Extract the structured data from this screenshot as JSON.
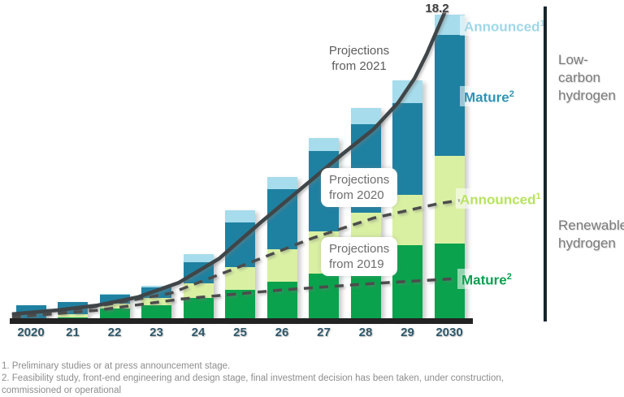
{
  "chart_data": {
    "type": "bar",
    "stacked": true,
    "grid": false,
    "ylim": [
      0,
      19
    ],
    "categories": [
      "2020",
      "21",
      "22",
      "23",
      "24",
      "25",
      "26",
      "27",
      "28",
      "29",
      "2030"
    ],
    "series": [
      {
        "key": "mature-renewable",
        "name": "Mature",
        "group": "Renewable hydrogen",
        "color": "#0aa24d",
        "values": [
          0.0,
          0.1,
          0.6,
          0.8,
          1.25,
          1.7,
          2.2,
          2.7,
          3.7,
          4.35,
          4.45
        ]
      },
      {
        "key": "announced-renewable",
        "name": "Announced",
        "group": "Renewable hydrogen",
        "color": "#d9f0a3",
        "values": [
          0.05,
          0.2,
          0.3,
          0.45,
          0.85,
          1.35,
          1.9,
          2.45,
          2.55,
          2.95,
          5.15
        ]
      },
      {
        "key": "mature-lowcarbon",
        "name": "Mature",
        "group": "Low-carbon hydrogen",
        "color": "#1f81a1",
        "values": [
          0.75,
          0.7,
          0.55,
          0.6,
          1.25,
          2.65,
          3.55,
          4.75,
          5.25,
          5.45,
          7.15
        ]
      },
      {
        "key": "announced-lowcarbon",
        "name": "Announced",
        "group": "Low-carbon hydrogen",
        "color": "#a7dcec",
        "values": [
          0.0,
          0.0,
          0.05,
          0.1,
          0.5,
          0.7,
          0.7,
          0.75,
          0.95,
          1.3,
          1.2
        ]
      }
    ],
    "lines": [
      {
        "key": "proj-2021",
        "label": "Projections from 2021",
        "style": "solid",
        "color": "#3f4548",
        "peak_label": "18.2",
        "points": [
          [
            -0.45,
            0.29
          ],
          [
            0.62,
            0.52
          ],
          [
            1.59,
            0.81
          ],
          [
            2.56,
            1.29
          ],
          [
            3.53,
            2.14
          ],
          [
            4.5,
            3.57
          ],
          [
            5.48,
            5.67
          ],
          [
            6.45,
            7.67
          ],
          [
            7.42,
            9.67
          ],
          [
            8.19,
            11.19
          ],
          [
            8.78,
            12.76
          ],
          [
            9.17,
            14.19
          ],
          [
            9.46,
            15.62
          ],
          [
            9.71,
            17.05
          ],
          [
            9.9,
            18.14
          ]
        ]
      },
      {
        "key": "proj-2020",
        "label": "Projections from 2020",
        "style": "dashed",
        "color": "#4c4c4c",
        "points": [
          [
            -0.45,
            0.24
          ],
          [
            1.4,
            0.67
          ],
          [
            3.34,
            1.52
          ],
          [
            4.7,
            2.81
          ],
          [
            6.72,
            4.76
          ],
          [
            8.19,
            5.95
          ],
          [
            9.75,
            6.81
          ],
          [
            10.25,
            7.0
          ]
        ]
      },
      {
        "key": "proj-2019",
        "label": "Projections from 2019",
        "style": "dashed",
        "color": "#4c4c4c",
        "points": [
          [
            -0.45,
            0.1
          ],
          [
            1.59,
            0.52
          ],
          [
            3.63,
            1.19
          ],
          [
            5.96,
            1.71
          ],
          [
            8.19,
            2.1
          ],
          [
            10.1,
            2.38
          ]
        ]
      }
    ]
  },
  "labels": {
    "peak": "18.2",
    "p2021_lines": [
      "Projections",
      "from 2021"
    ],
    "p2020_lines": [
      "Projections",
      "from 2020"
    ],
    "p2019_lines": [
      "Projections",
      "from 2019"
    ],
    "announced_lowcarbon": {
      "text": "Announced",
      "sup": "1"
    },
    "mature_lowcarbon": {
      "text": "Mature",
      "sup": "2"
    },
    "announced_renewable": {
      "text": "Announced",
      "sup": "1"
    },
    "mature_renewable": {
      "text": "Mature",
      "sup": "2"
    },
    "group_low_carbon": [
      "Low-",
      "carbon",
      "hydrogen"
    ],
    "group_renewable": [
      "Renewable",
      "hydrogen"
    ]
  },
  "footnotes": [
    "1. Preliminary studies or at press announcement stage.",
    "2. Feasibility study, front-end engineering and design stage, final investment decision has been taken, under construction,",
    "commissioned or operational"
  ]
}
